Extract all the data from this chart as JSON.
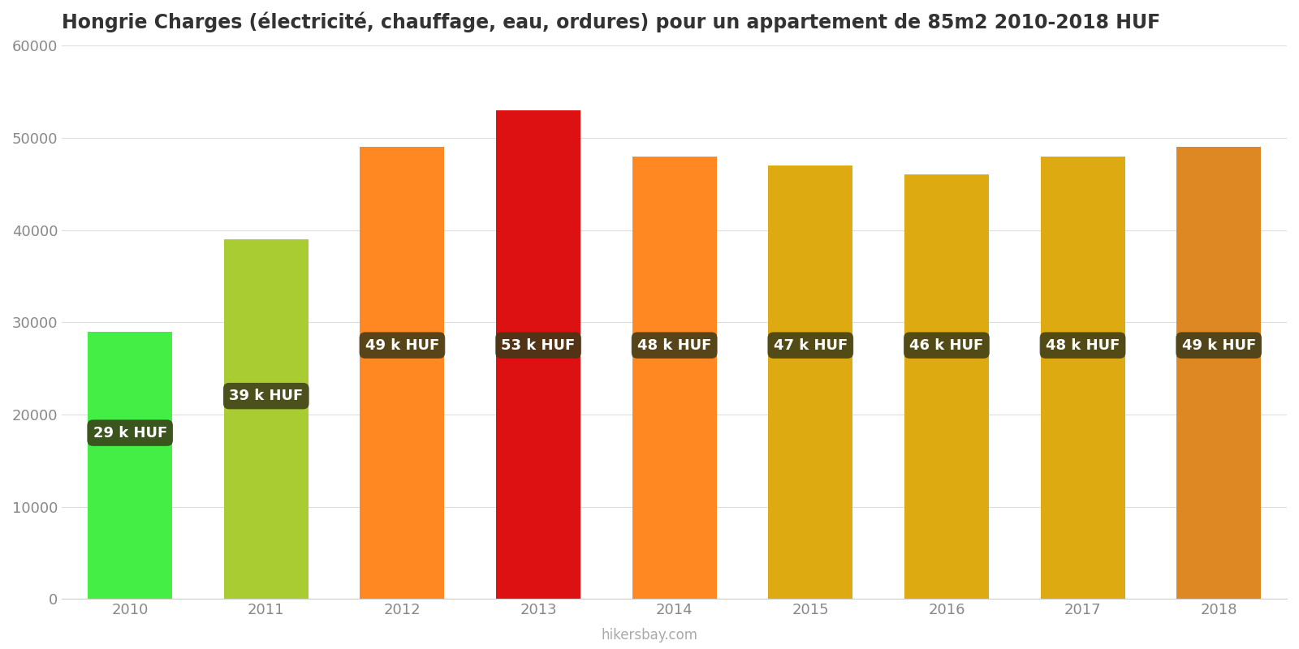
{
  "title": "Hongrie Charges (électricité, chauffage, eau, ordures) pour un appartement de 85m2 2010-2018 HUF",
  "years": [
    2010,
    2011,
    2012,
    2013,
    2014,
    2015,
    2016,
    2017,
    2018
  ],
  "values": [
    29000,
    39000,
    49000,
    53000,
    48000,
    47000,
    46000,
    48000,
    49000
  ],
  "labels": [
    "29 k HUF",
    "39 k HUF",
    "49 k HUF",
    "53 k HUF",
    "48 k HUF",
    "47 k HUF",
    "46 k HUF",
    "48 k HUF",
    "49 k HUF"
  ],
  "bar_colors": [
    "#44ee44",
    "#aacc33",
    "#ff8822",
    "#dd1111",
    "#ff8822",
    "#ddaa11",
    "#ddaa11",
    "#ddaa11",
    "#dd8822"
  ],
  "label_y_positions": [
    18000,
    22000,
    27500,
    27500,
    27500,
    27500,
    27500,
    27500,
    27500
  ],
  "ylim": [
    0,
    60000
  ],
  "yticks": [
    0,
    10000,
    20000,
    30000,
    40000,
    50000,
    60000
  ],
  "background_color": "#ffffff",
  "label_bg_color": "#3a3a18",
  "label_text_color": "#ffffff",
  "title_fontsize": 17,
  "watermark": "hikersbay.com"
}
